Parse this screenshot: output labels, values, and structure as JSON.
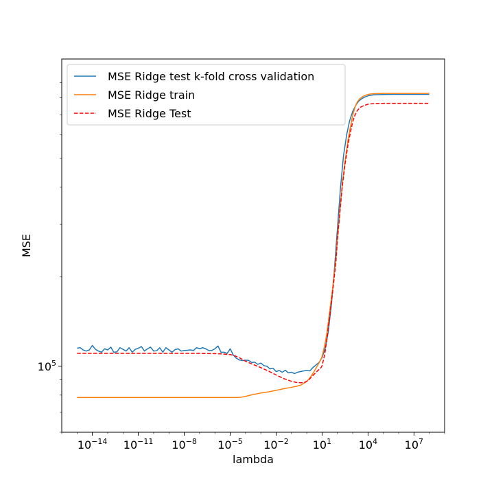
{
  "chart_data": {
    "type": "line",
    "title": "",
    "xlabel": "lambda",
    "ylabel": "MSE",
    "x_scale": "log",
    "y_scale": "log",
    "xlim": [
      1e-16,
      1000000000.0
    ],
    "ylim": [
      60000,
      1080000
    ],
    "grid": false,
    "legend_position": "upper-left",
    "x_ticks": [
      {
        "value": 1e-14,
        "base": "10",
        "exp": "−14"
      },
      {
        "value": 1e-11,
        "base": "10",
        "exp": "−11"
      },
      {
        "value": 1e-08,
        "base": "10",
        "exp": "−8"
      },
      {
        "value": 1e-05,
        "base": "10",
        "exp": "−5"
      },
      {
        "value": 0.01,
        "base": "10",
        "exp": "−2"
      },
      {
        "value": 10,
        "base": "10",
        "exp": "1"
      },
      {
        "value": 10000.0,
        "base": "10",
        "exp": "4"
      },
      {
        "value": 10000000.0,
        "base": "10",
        "exp": "7"
      }
    ],
    "y_ticks": [
      {
        "value": 100000,
        "base": "10",
        "exp": "5"
      }
    ],
    "y_minor_ticks": [
      60000,
      70000,
      80000,
      90000,
      200000,
      300000,
      400000,
      500000,
      600000,
      700000,
      800000,
      900000
    ],
    "series": [
      {
        "name": "MSE Ridge test k-fold cross validation",
        "color": "#1f77b4",
        "dash": "solid",
        "x": [
          1e-15,
          1.6e-15,
          2.5e-15,
          4e-15,
          6.3e-15,
          1e-14,
          1.6e-14,
          2.5e-14,
          4e-14,
          6.3e-14,
          1e-13,
          1.6e-13,
          2.5e-13,
          4e-13,
          6.3e-13,
          1e-12,
          1.6e-12,
          2.5e-12,
          4e-12,
          6.3e-12,
          1e-11,
          1.6e-11,
          2.5e-11,
          4e-11,
          6.3e-11,
          1e-10,
          1.6e-10,
          2.5e-10,
          4e-10,
          6.3e-10,
          1e-09,
          1.6e-09,
          2.5e-09,
          4e-09,
          6.3e-09,
          1e-08,
          1.6e-08,
          2.5e-08,
          4e-08,
          6.3e-08,
          1e-07,
          1.6e-07,
          2.5e-07,
          4e-07,
          6.3e-07,
          1e-06,
          1.6e-06,
          2.5e-06,
          4e-06,
          6.3e-06,
          1e-05,
          1.6e-05,
          2.5e-05,
          4e-05,
          6.3e-05,
          0.0001,
          0.00016,
          0.00025,
          0.0004,
          0.00063,
          0.001,
          0.0016,
          0.0025,
          0.004,
          0.0063,
          0.01,
          0.016,
          0.025,
          0.04,
          0.063,
          0.1,
          0.16,
          0.25,
          0.4,
          0.63,
          1,
          1.6,
          2.5,
          4,
          6.3,
          10,
          16,
          25,
          40,
          63,
          100,
          160,
          250,
          400,
          630,
          1000,
          1600,
          2500,
          4000,
          6300,
          10000,
          16000,
          25000,
          40000,
          63000,
          100000,
          160000,
          250000,
          400000,
          630000,
          1000000,
          1600000,
          2500000,
          4000000,
          6300000,
          10000000,
          16000000,
          25000000,
          40000000,
          63000000,
          100000000
        ],
        "y": [
          115000,
          115500,
          113500,
          112500,
          113500,
          117500,
          114000,
          112500,
          111500,
          114500,
          113500,
          116000,
          111500,
          111800,
          115500,
          114000,
          112500,
          115500,
          111500,
          114000,
          115000,
          116500,
          112500,
          114500,
          116000,
          112500,
          112800,
          115500,
          111500,
          115500,
          113500,
          111500,
          113800,
          114500,
          112500,
          113000,
          113200,
          113500,
          113000,
          115500,
          114500,
          115500,
          114500,
          113000,
          113000,
          114500,
          117000,
          111500,
          111500,
          110500,
          114500,
          109000,
          106500,
          105000,
          104500,
          104800,
          104700,
          103000,
          103200,
          101500,
          102500,
          100500,
          100000,
          98000,
          98500,
          96000,
          96800,
          95500,
          97000,
          95000,
          95500,
          94500,
          95500,
          96000,
          96500,
          96800,
          96500,
          99000,
          101000,
          103000,
          107000,
          115000,
          130000,
          160000,
          210000,
          290000,
          400000,
          510000,
          600000,
          670000,
          720000,
          755000,
          780000,
          795000,
          805000,
          812000,
          816000,
          818000,
          819500,
          820000,
          820500,
          821000,
          821000,
          821200,
          821300,
          821400,
          821400,
          821500,
          821500,
          821500,
          821500,
          821500,
          821500,
          821500,
          821500,
          821500
        ]
      },
      {
        "name": "MSE Ridge train",
        "color": "#ff7f0e",
        "dash": "solid",
        "x": [
          1e-15,
          1e-13,
          1e-11,
          1e-09,
          1e-07,
          1e-06,
          3e-06,
          1e-05,
          2e-05,
          3e-05,
          5e-05,
          0.0001,
          0.0003,
          0.001,
          0.003,
          0.01,
          0.03,
          0.1,
          0.2,
          0.4,
          0.7,
          1,
          1.5,
          2,
          3,
          5,
          8,
          10,
          15,
          20,
          30,
          50,
          80,
          100,
          150,
          200,
          300,
          500,
          800,
          1000,
          1500,
          2000,
          3000,
          5000,
          8000,
          10000,
          15000,
          20000,
          30000,
          50000,
          80000,
          100000,
          300000,
          1000000,
          10000000,
          100000000
        ],
        "y": [
          78500,
          78500,
          78500,
          78500,
          78500,
          78500,
          78500,
          78500,
          78500,
          78550,
          78700,
          79200,
          80300,
          81300,
          82000,
          83000,
          84000,
          85000,
          85600,
          86400,
          87800,
          89000,
          91000,
          93000,
          96000,
          100500,
          105000,
          108000,
          118000,
          128000,
          150000,
          185000,
          230000,
          270000,
          340000,
          400000,
          480000,
          580000,
          660000,
          700000,
          750000,
          775000,
          795000,
          810000,
          818000,
          821000,
          823500,
          825000,
          826000,
          826800,
          827200,
          827400,
          827600,
          827700,
          827700,
          827700
        ]
      },
      {
        "name": "MSE Ridge Test",
        "color": "#ff0000",
        "dash": "dashed",
        "x": [
          1e-15,
          1e-13,
          1e-11,
          1e-09,
          1e-07,
          1e-06,
          3e-06,
          1e-05,
          2e-05,
          3e-05,
          5e-05,
          0.0001,
          0.0003,
          0.001,
          0.003,
          0.01,
          0.03,
          0.1,
          0.2,
          0.4,
          0.7,
          1,
          1.5,
          2,
          3,
          5,
          8,
          10,
          15,
          20,
          30,
          50,
          80,
          100,
          150,
          200,
          300,
          500,
          800,
          1000,
          1500,
          2000,
          3000,
          5000,
          8000,
          10000,
          15000,
          20000,
          30000,
          50000,
          80000,
          100000,
          300000,
          1000000,
          10000000,
          100000000
        ],
        "y": [
          110500,
          110500,
          110500,
          110500,
          110500,
          110300,
          110000,
          109500,
          108500,
          107500,
          106200,
          104000,
          101500,
          99000,
          96500,
          93500,
          91000,
          89000,
          88300,
          88000,
          88300,
          89000,
          90500,
          92000,
          94000,
          96500,
          98500,
          100500,
          110000,
          122000,
          145000,
          180000,
          225000,
          265000,
          335000,
          395000,
          470000,
          560000,
          630000,
          665000,
          705000,
          725000,
          742000,
          752000,
          758000,
          761000,
          763000,
          764000,
          765000,
          765500,
          765800,
          766000,
          766200,
          766300,
          766300,
          766300
        ]
      }
    ]
  }
}
